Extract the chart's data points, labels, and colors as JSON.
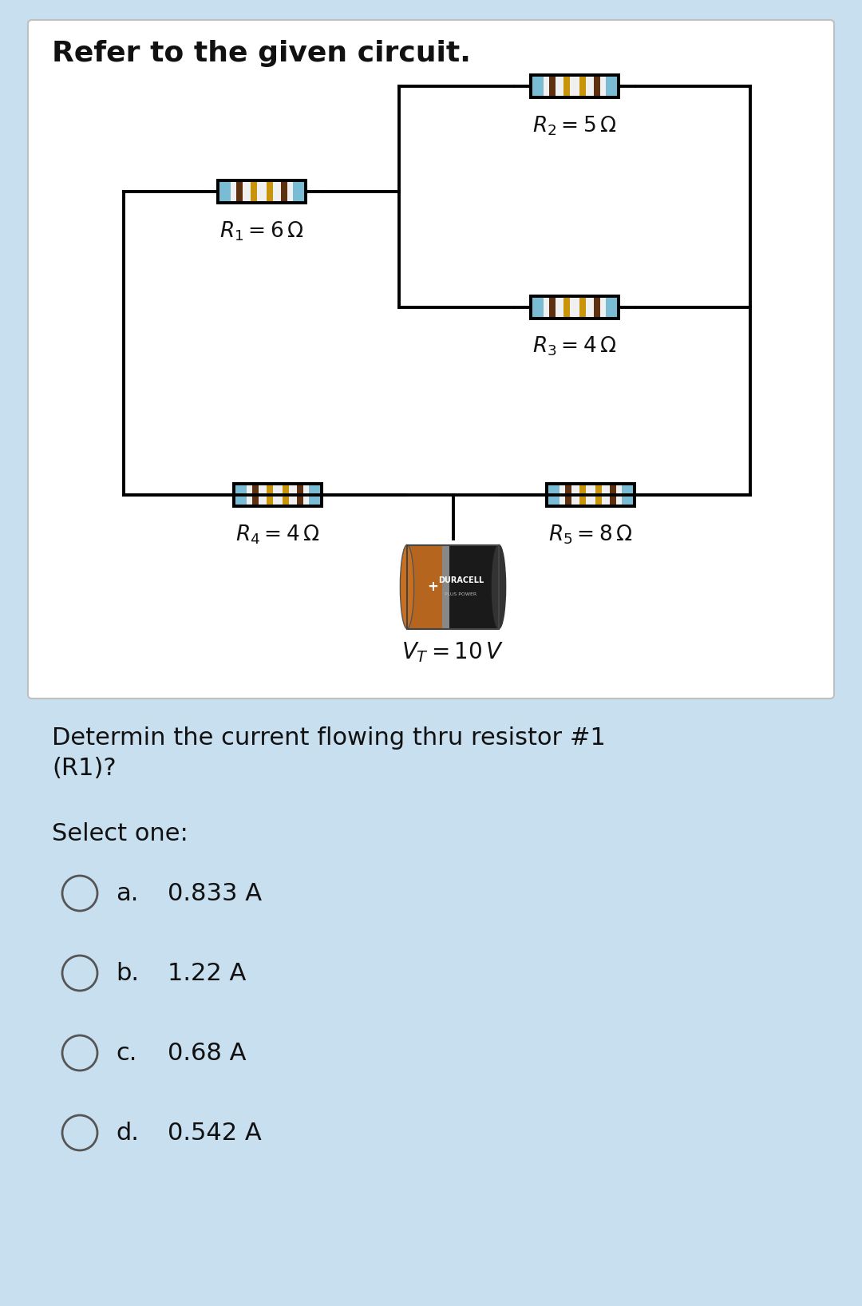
{
  "title": "Refer to the given circuit.",
  "bg_color": "#c8dff0",
  "card_color": "#ffffff",
  "question_line1": "Determin the current flowing thru resistor #1",
  "question_line2": "(R1)?",
  "select_label": "Select one:",
  "options": [
    {
      "letter": "a.",
      "text": "0.833 A"
    },
    {
      "letter": "b.",
      "text": "1.22 A"
    },
    {
      "letter": "c.",
      "text": "0.68 A"
    },
    {
      "letter": "d.",
      "text": "0.542 A"
    }
  ],
  "r1_label": "$R_1 = 6\\,\\Omega$",
  "r2_label": "$R_2 = 5\\,\\Omega$",
  "r3_label": "$R_3 = 4\\,\\Omega$",
  "r4_label": "$R_4 = 4\\,\\Omega$",
  "r5_label": "$R_5 = 8\\,\\Omega$",
  "battery_label": "$V_T = 10\\,V$",
  "line_color": "#000000",
  "line_width": 2.8
}
